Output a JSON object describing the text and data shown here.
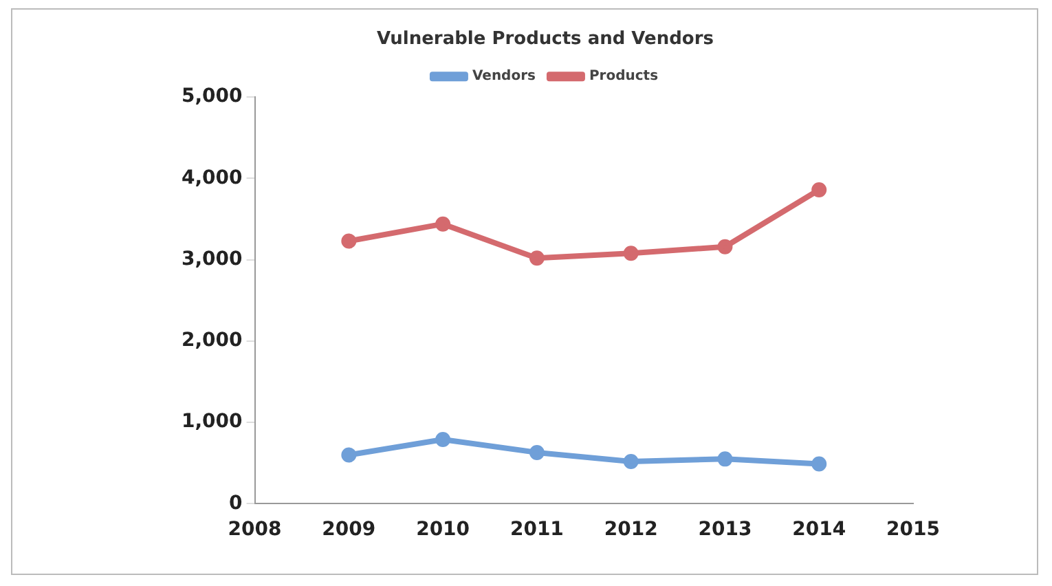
{
  "chart_data": {
    "type": "line",
    "title": "Vulnerable Products and Vendors",
    "x": [
      2009,
      2010,
      2011,
      2012,
      2013,
      2014
    ],
    "series": [
      {
        "name": "Vendors",
        "color": "#6f9fd8",
        "values": [
          600,
          790,
          630,
          520,
          550,
          490
        ]
      },
      {
        "name": "Products",
        "color": "#d46a6e",
        "values": [
          3230,
          3440,
          3020,
          3080,
          3160,
          3860
        ]
      }
    ],
    "xlim": [
      2008,
      2015
    ],
    "xticks": [
      2008,
      2009,
      2010,
      2011,
      2012,
      2013,
      2014,
      2015
    ],
    "ylim": [
      0,
      5000
    ],
    "yticks": [
      0,
      {
        "value": 1000,
        "label": "1,000"
      },
      {
        "value": 2000,
        "label": "2,000"
      },
      {
        "value": 3000,
        "label": "3,000"
      },
      {
        "value": 4000,
        "label": "4,000"
      },
      {
        "value": 5000,
        "label": "5,000"
      }
    ],
    "grid": false,
    "legend": "top",
    "marker": "circle",
    "line_style": "solid"
  }
}
